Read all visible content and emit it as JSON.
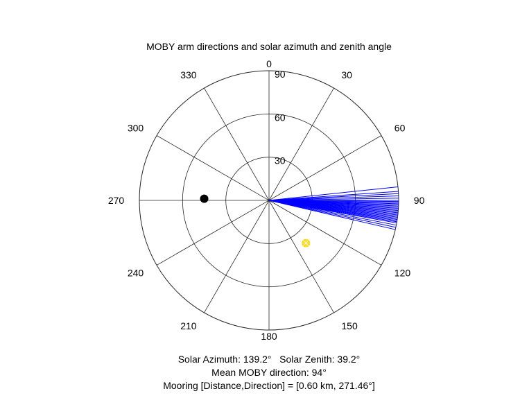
{
  "chart_data": {
    "type": "polar",
    "title": "MOBY arm directions and solar azimuth and zenith angle",
    "theta_zero": "top",
    "theta_direction": "clockwise",
    "theta_ticks": [
      0,
      30,
      60,
      90,
      120,
      150,
      180,
      210,
      240,
      270,
      300,
      330
    ],
    "theta_tick_labels": [
      "0",
      "30",
      "60",
      "90",
      "120",
      "150",
      "180",
      "210",
      "240",
      "270",
      "300",
      "330"
    ],
    "r_max": 90,
    "r_ticks": [
      30,
      60,
      90
    ],
    "r_tick_labels": [
      "30",
      "60",
      "90"
    ],
    "grid": true,
    "arm_directions": {
      "color": "#0000ff",
      "r": 90,
      "angles": [
        84,
        86,
        87,
        88,
        89,
        90,
        90.5,
        91,
        91.5,
        92,
        92.5,
        93,
        93.5,
        94,
        94.5,
        95,
        95.5,
        96,
        96.5,
        97,
        97.5,
        98,
        98.5,
        99,
        99.5,
        100,
        101,
        102,
        103
      ]
    },
    "sun": {
      "azimuth": 139.2,
      "zenith": 39.2,
      "color": "#ffd700"
    },
    "mooring": {
      "direction": 271.46,
      "r": 45,
      "color": "#000000"
    },
    "captions": [
      "Solar Azimuth: 139.2°   Solar Zenith: 39.2°",
      "Mean MOBY direction: 94°",
      "Mooring [Distance,Direction] = [0.60 km, 271.46°]"
    ]
  }
}
